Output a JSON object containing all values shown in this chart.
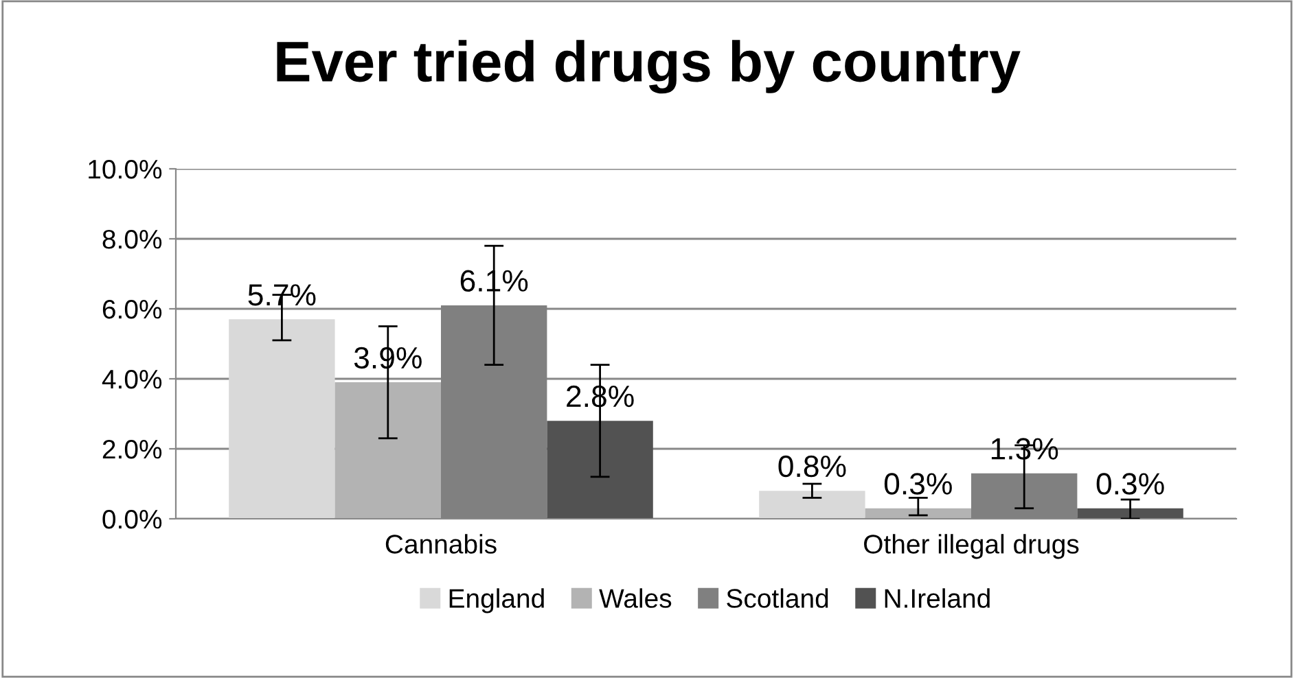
{
  "chart_data": {
    "type": "bar",
    "title": "Ever tried drugs by country",
    "categories": [
      "Cannabis",
      "Other illegal drugs"
    ],
    "series": [
      {
        "name": "England",
        "color": "#d9d9d9",
        "values": [
          5.7,
          0.8
        ],
        "value_labels": [
          "5.7%",
          "0.8%"
        ],
        "errors": [
          [
            5.1,
            6.4
          ],
          [
            0.6,
            1.0
          ]
        ]
      },
      {
        "name": "Wales",
        "color": "#b3b3b3",
        "values": [
          3.9,
          0.3
        ],
        "value_labels": [
          "3.9%",
          "0.3%"
        ],
        "errors": [
          [
            2.3,
            5.5
          ],
          [
            0.1,
            0.6
          ]
        ]
      },
      {
        "name": "Scotland",
        "color": "#808080",
        "values": [
          6.1,
          1.3
        ],
        "value_labels": [
          "6.1%",
          "1.3%"
        ],
        "errors": [
          [
            4.4,
            7.8
          ],
          [
            0.3,
            2.1
          ]
        ]
      },
      {
        "name": "N.Ireland",
        "color": "#525252",
        "values": [
          2.8,
          0.3
        ],
        "value_labels": [
          "2.8%",
          "0.3%"
        ],
        "errors": [
          [
            1.2,
            4.4
          ],
          [
            0.0,
            0.55
          ]
        ]
      }
    ],
    "ylim": [
      0,
      10
    ],
    "yticks": [
      {
        "value": 0,
        "label": "0.0%"
      },
      {
        "value": 2,
        "label": "2.0%"
      },
      {
        "value": 4,
        "label": "4.0%"
      },
      {
        "value": 6,
        "label": "6.0%"
      },
      {
        "value": 8,
        "label": "8.0%"
      },
      {
        "value": 10,
        "label": "10.0%"
      }
    ],
    "grid": "y",
    "legend": "bottom"
  }
}
